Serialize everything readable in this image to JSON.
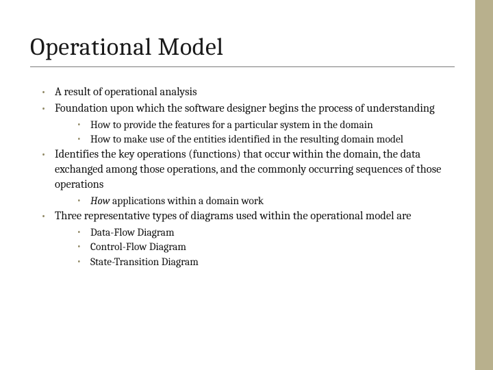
{
  "title": "Operational Model",
  "colors": {
    "accent_bar": "#b8b08d",
    "bullet": "#8e8662",
    "text": "#111111",
    "divider": "#7a7a7a",
    "background": "#ffffff"
  },
  "typography": {
    "title_fontsize": 36,
    "body_fontsize": 16.5,
    "sub_fontsize": 15.5,
    "family": "Cambria/Georgia serif"
  },
  "bullets": [
    {
      "text": "A result of operational analysis",
      "children": []
    },
    {
      "text": "Foundation upon which the software designer begins the process of understanding",
      "children": [
        {
          "text": "How to provide the features for a particular system in the domain"
        },
        {
          "text": "How to make use of the entities identified in the resulting domain model"
        }
      ]
    },
    {
      "text": "Identifies the key operations (functions) that occur within the domain, the data exchanged among those operations, and the commonly occurring sequences of those operations",
      "children": [
        {
          "text_prefix_italic": "How",
          "text_rest": " applications within a domain work"
        }
      ]
    },
    {
      "text": "Three representative types of diagrams used within the operational model are",
      "children": [
        {
          "text": "Data-Flow Diagram"
        },
        {
          "text": "Control-Flow Diagram"
        },
        {
          "text": "State-Transition Diagram"
        }
      ]
    }
  ]
}
